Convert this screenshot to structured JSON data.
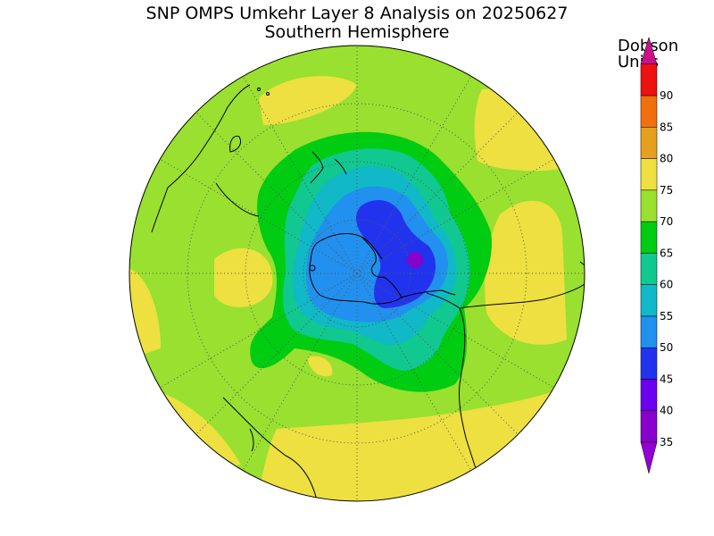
{
  "title": "SNP OMPS Umkehr Layer 8 Analysis on 20250627",
  "subtitle": "Southern Hemisphere",
  "colorbar": {
    "title_line1": "Dobson",
    "title_line2": "Units",
    "levels": [
      "35",
      "40",
      "45",
      "50",
      "55",
      "60",
      "65",
      "70",
      "75",
      "80",
      "85",
      "90"
    ],
    "colors": [
      "#8800cc",
      "#6a00ee",
      "#2233ee",
      "#2290ee",
      "#10b8c8",
      "#10c890",
      "#00cc11",
      "#99e030",
      "#ede040",
      "#e5a020",
      "#f07010",
      "#ee1111"
    ],
    "under_color": "#9400d3",
    "over_color": "#cc1188"
  },
  "map": {
    "projection": "south-polar-stereographic",
    "background_color": "#99e030",
    "coastline_color": "#000000",
    "graticule_style": "dotted"
  }
}
